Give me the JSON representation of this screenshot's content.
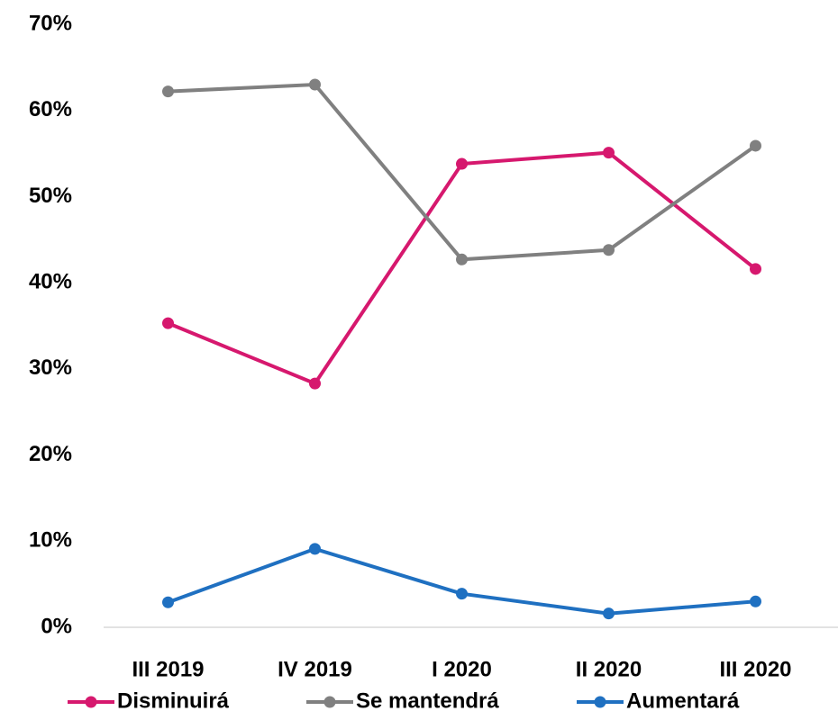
{
  "chart_data": {
    "type": "line",
    "categories": [
      "III 2019",
      "IV 2019",
      "I 2020",
      "II 2020",
      "III 2020"
    ],
    "series": [
      {
        "name": "Disminuirá",
        "color": "#d6186e",
        "values": [
          35.3,
          28.3,
          53.8,
          55.1,
          41.6
        ]
      },
      {
        "name": "Se mantendrá",
        "color": "#808080",
        "values": [
          62.2,
          63.0,
          42.7,
          43.8,
          55.9
        ]
      },
      {
        "name": "Aumentará",
        "color": "#1f70c1",
        "values": [
          2.9,
          9.1,
          3.9,
          1.6,
          3.0
        ]
      }
    ],
    "ylim": [
      0,
      70
    ],
    "yticks": [
      {
        "value": 0,
        "label": "0%"
      },
      {
        "value": 10,
        "label": "10%"
      },
      {
        "value": 20,
        "label": "20%"
      },
      {
        "value": 30,
        "label": "30%"
      },
      {
        "value": 40,
        "label": "40%"
      },
      {
        "value": 50,
        "label": "50%"
      },
      {
        "value": 60,
        "label": "60%"
      },
      {
        "value": 70,
        "label": "70%"
      }
    ],
    "legend": "bottom"
  }
}
